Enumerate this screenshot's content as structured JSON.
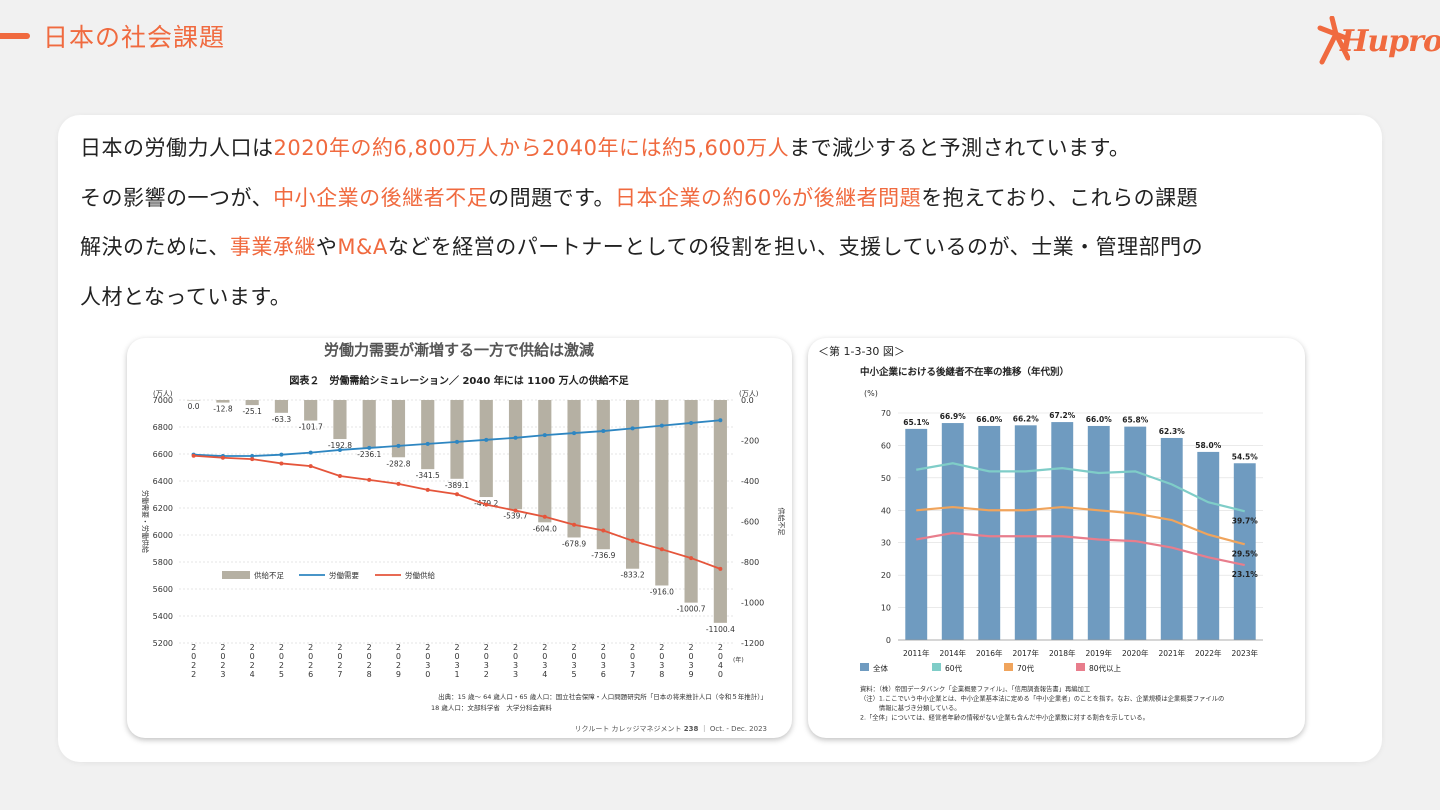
{
  "header": {
    "title": "日本の社会課題",
    "logo_text": "Hupro",
    "accent_color": "#f06a3f"
  },
  "body": {
    "line1": {
      "a": "日本の労働力人口は",
      "b": "2020年の約6,800万人から2040年には約5,600万人",
      "c": "まで減少すると予測されています。"
    },
    "line2": {
      "a": "その影響の一つが、",
      "b": "中小企業の後継者不足",
      "c": "の問題です。",
      "d": "日本企業の約60%が後継者問題",
      "e": "を抱えており、これらの課題"
    },
    "line3": {
      "a": "解決のために、",
      "b": "事業承継",
      "c": "や",
      "d": "M&A",
      "e": "などを経営のパートナーとしての役割を担い、支援しているのが、士業・管理部門の"
    },
    "line4": "人材となっています。"
  },
  "chart_data": [
    {
      "type": "bar",
      "title": "労働力需要が漸増する一方で供給は激減",
      "subtitle": "図表２　労働需給シミュレーション／ 2040 年には 1100 万人の供給不足",
      "left_unit": "(万人)",
      "right_unit": "(万人)",
      "ylabel_left": "労働需要・労働供給",
      "ylabel_right": "供給不足",
      "left_ticks": [
        7000,
        6800,
        6600,
        6400,
        6200,
        6000,
        5800,
        5600,
        5400,
        5200
      ],
      "right_ticks": [
        "0.0",
        "-200",
        "-400",
        "-600",
        "-800",
        "-1000",
        "-1200"
      ],
      "ylim_left": [
        5200,
        7000
      ],
      "ylim_right": [
        -1200,
        0
      ],
      "x_suffix": "(年)",
      "categories": [
        "2022",
        "2023",
        "2024",
        "2025",
        "2026",
        "2027",
        "2028",
        "2029",
        "2030",
        "2031",
        "2032",
        "2033",
        "2034",
        "2035",
        "2036",
        "2037",
        "2038",
        "2039",
        "2040"
      ],
      "series": [
        {
          "name": "供給不足",
          "type": "bar",
          "color": "#b5b0a3",
          "values": [
            0.0,
            -12.8,
            -25.1,
            -63.3,
            -101.7,
            -192.8,
            -236.1,
            -282.8,
            -341.5,
            -389.1,
            -479.2,
            -539.7,
            -604.0,
            -678.9,
            -736.9,
            -833.2,
            -916.0,
            -1000.7,
            -1100.4
          ],
          "labels": [
            "0.0",
            "-12.8",
            "-25.1",
            "-63.3",
            "-101.7",
            "-192.8",
            "-236.1",
            "-282.8",
            "-341.5",
            "-389.1",
            "-479.2",
            "-539.7",
            "-604.0",
            "-678.9",
            "-736.9",
            "-833.2",
            "-916.0",
            "-1000.7",
            "-1100.4"
          ]
        },
        {
          "name": "労働需要",
          "type": "line",
          "color": "#2e86c1",
          "values": [
            6595,
            6585,
            6585,
            6595,
            6610,
            6630,
            6645,
            6660,
            6675,
            6690,
            6705,
            6720,
            6740,
            6755,
            6770,
            6790,
            6810,
            6830,
            6850
          ]
        },
        {
          "name": "労働供給",
          "type": "line",
          "color": "#e5553b",
          "values": [
            6587,
            6572,
            6562,
            6530,
            6510,
            6437,
            6408,
            6379,
            6334,
            6302,
            6225,
            6181,
            6135,
            6076,
            6033,
            5957,
            5894,
            5829,
            5749
          ]
        }
      ],
      "source": "出典：15 歳～ 64 歳人口・65 歳人口：国立社会保障・人口問題研究所「日本の将来推計人口（令和５年推計）」",
      "source2": "18 歳人口：文部科学省　大学分科会資料",
      "footer_left": "リクルート カレッジマネジメント",
      "footer_num": "238",
      "footer_right": "｜ Oct. - Dec. 2023"
    },
    {
      "type": "bar",
      "label": "＜第 1-3-30 図＞",
      "title": "中小企業における後継者不在率の推移（年代別）",
      "y_unit": "(%)",
      "y_ticks": [
        0,
        10,
        20,
        30,
        40,
        50,
        60,
        70
      ],
      "ylim": [
        0,
        70
      ],
      "categories": [
        "2011年",
        "2014年",
        "2016年",
        "2017年",
        "2018年",
        "2019年",
        "2020年",
        "2021年",
        "2022年",
        "2023年"
      ],
      "series": [
        {
          "name": "全体",
          "type": "bar",
          "color": "#6f9bc0",
          "values": [
            65.1,
            66.9,
            66.0,
            66.2,
            67.2,
            66.0,
            65.8,
            62.3,
            58.0,
            54.5
          ],
          "labels": [
            "65.1%",
            "66.9%",
            "66.0%",
            "66.2%",
            "67.2%",
            "66.0%",
            "65.8%",
            "62.3%",
            "58.0%",
            "54.5%"
          ]
        },
        {
          "name": "60代",
          "type": "line",
          "color": "#7fcdc8",
          "values": [
            52.5,
            54.5,
            52.0,
            52.0,
            53.0,
            51.5,
            52.0,
            48.0,
            42.5,
            39.7
          ],
          "end_label": "39.7%"
        },
        {
          "name": "70代",
          "type": "line",
          "color": "#f0a45c",
          "values": [
            40.0,
            41.0,
            40.0,
            40.0,
            41.0,
            40.0,
            39.0,
            37.0,
            32.5,
            29.5
          ],
          "end_label": "29.5%"
        },
        {
          "name": "80代以上",
          "type": "line",
          "color": "#e87d8c",
          "values": [
            31.0,
            33.0,
            32.0,
            32.0,
            32.0,
            31.0,
            30.5,
            28.5,
            25.5,
            23.1
          ],
          "end_label": "23.1%"
        }
      ],
      "notes": [
        "資料：（株）帝国データバンク「企業概要ファイル」、「信用調査報告書」再編加工",
        "（注）1.ここでいう中小企業とは、中小企業基本法に定める「中小企業者」のことを指す。なお、企業規模は企業概要ファイルの",
        "　　　情報に基づき分類している。",
        "2.「全体」については、経営者年齢の情報がない企業も含んだ中小企業数に対する割合を示している。"
      ]
    }
  ]
}
